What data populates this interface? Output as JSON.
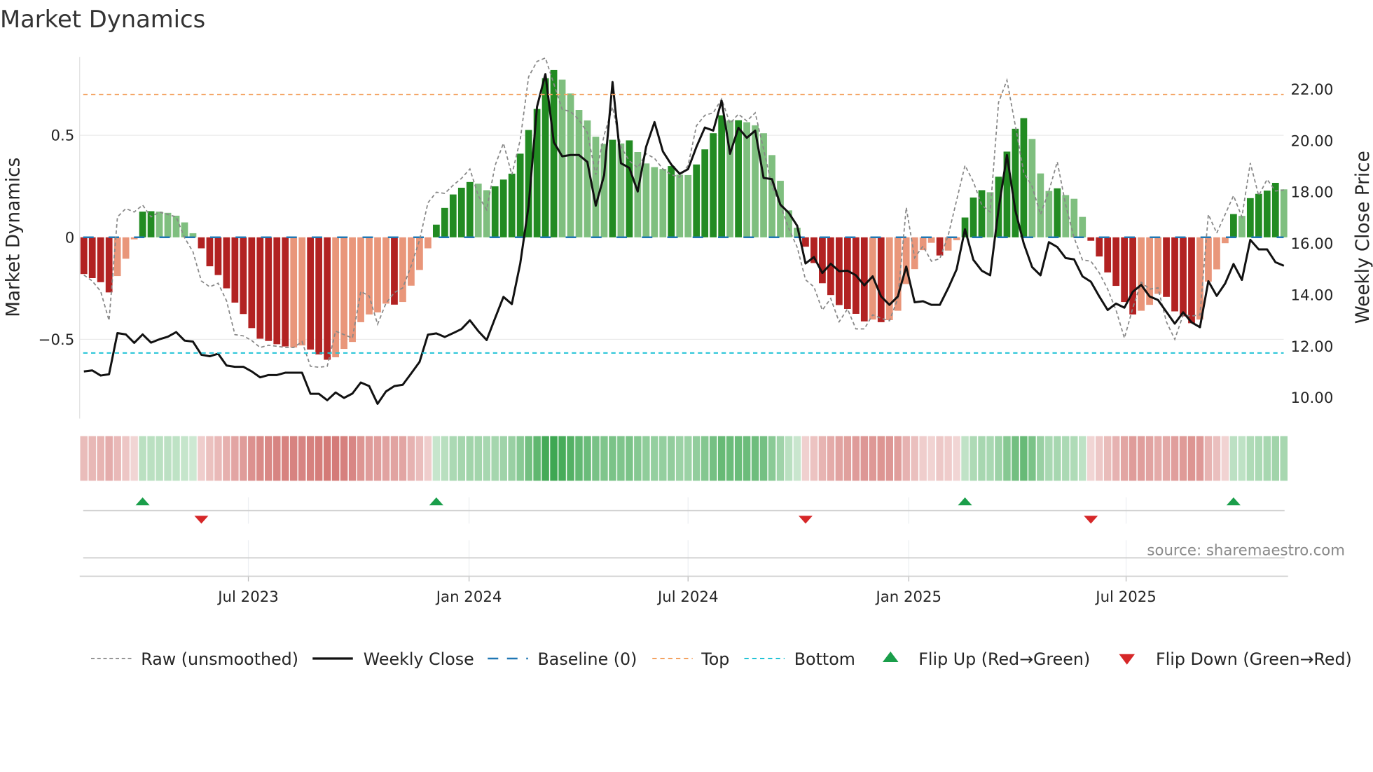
{
  "chart_data": {
    "type": "bar",
    "title": "Market Dynamics",
    "ylabel": "Market Dynamics",
    "y2label": "Weekly Close Price",
    "ylim": [
      -0.9,
      0.9
    ],
    "y2lim": [
      9.0,
      23.3
    ],
    "yticks": [
      {
        "v": 0.5,
        "label": "0.5"
      },
      {
        "v": 0,
        "label": "0"
      },
      {
        "v": -0.5,
        "label": "−0.5"
      }
    ],
    "y2ticks": [
      {
        "v": 22,
        "label": "22.00"
      },
      {
        "v": 20,
        "label": "20.00"
      },
      {
        "v": 18,
        "label": "18.00"
      },
      {
        "v": 16,
        "label": "16.00"
      },
      {
        "v": 14,
        "label": "14.00"
      },
      {
        "v": 12,
        "label": "12.00"
      },
      {
        "v": 10,
        "label": "10.00"
      }
    ],
    "xticks": [
      {
        "week": 19.6,
        "label": "Jul 2023"
      },
      {
        "week": 45.9,
        "label": "Jan 2024"
      },
      {
        "week": 72.0,
        "label": "Jul 2024"
      },
      {
        "week": 98.3,
        "label": "Jan 2025"
      },
      {
        "week": 124.2,
        "label": "Jul 2025"
      }
    ],
    "top_level": 0.7,
    "bottom_level": -0.567,
    "baseline": 0,
    "grid": true,
    "legend_placement": "bottom",
    "source": "source: sharemaestro.com",
    "legend": [
      {
        "key": "raw",
        "label": "Raw (unsmoothed)"
      },
      {
        "key": "close",
        "label": "Weekly Close"
      },
      {
        "key": "baseline",
        "label": "Baseline (0)"
      },
      {
        "key": "top",
        "label": "Top"
      },
      {
        "key": "bottom",
        "label": "Bottom"
      },
      {
        "key": "flipup",
        "label": "Flip Up (Red→Green)"
      },
      {
        "key": "flipdown",
        "label": "Flip Down (Green→Red)"
      }
    ],
    "colors": {
      "dark_green": "#228b22",
      "light_green": "#7fbf7f",
      "dark_red": "#b22222",
      "light_red": "#e9967a",
      "close": "#111111",
      "raw": "#888888",
      "baseline": "#1f77b4",
      "top": "#f4a261",
      "bottom": "#22c3d6",
      "flip_up": "#1a9e4a",
      "flip_down": "#d62728"
    },
    "values": [
      -0.18,
      -0.2,
      -0.22,
      -0.27,
      -0.19,
      -0.105,
      -0.01,
      0.126,
      0.128,
      0.126,
      0.12,
      0.106,
      0.073,
      0.02,
      -0.054,
      -0.142,
      -0.185,
      -0.25,
      -0.32,
      -0.376,
      -0.445,
      -0.497,
      -0.508,
      -0.524,
      -0.535,
      -0.54,
      -0.53,
      -0.55,
      -0.574,
      -0.6,
      -0.588,
      -0.547,
      -0.513,
      -0.416,
      -0.378,
      -0.368,
      -0.325,
      -0.33,
      -0.317,
      -0.237,
      -0.16,
      -0.054,
      0.062,
      0.144,
      0.21,
      0.243,
      0.271,
      0.263,
      0.231,
      0.25,
      0.283,
      0.312,
      0.41,
      0.526,
      0.629,
      0.78,
      0.82,
      0.773,
      0.705,
      0.624,
      0.573,
      0.493,
      0.458,
      0.478,
      0.46,
      0.475,
      0.418,
      0.362,
      0.344,
      0.335,
      0.349,
      0.307,
      0.305,
      0.357,
      0.431,
      0.51,
      0.598,
      0.573,
      0.574,
      0.564,
      0.549,
      0.51,
      0.403,
      0.277,
      0.132,
      0.047,
      -0.046,
      -0.126,
      -0.225,
      -0.283,
      -0.332,
      -0.351,
      -0.375,
      -0.412,
      -0.403,
      -0.416,
      -0.406,
      -0.36,
      -0.229,
      -0.156,
      -0.063,
      -0.027,
      -0.089,
      -0.065,
      -0.014,
      0.097,
      0.195,
      0.231,
      0.221,
      0.297,
      0.42,
      0.532,
      0.584,
      0.482,
      0.313,
      0.227,
      0.24,
      0.207,
      0.189,
      0.1,
      -0.017,
      -0.094,
      -0.172,
      -0.238,
      -0.317,
      -0.378,
      -0.36,
      -0.331,
      -0.277,
      -0.292,
      -0.363,
      -0.387,
      -0.421,
      -0.403,
      -0.217,
      -0.157,
      -0.029,
      0.114,
      0.105,
      0.192,
      0.213,
      0.229,
      0.267,
      0.235
    ],
    "shade": "DDDDLLLDDLLLLLDDDDDDDDDDDLLDDDLLLLLLLDLLLLDDDDDLLDDDDDDDDLLLLLLDLDLLLLDLLDDDDLDLLLLLLLDDDDDDDDLDLLLLLLDLLDDDLDDDDLLLDLLLDDDDDDLLLDDDDLLLLDLDDDDL",
    "raw": [
      -0.185,
      -0.214,
      -0.265,
      -0.408,
      0.1,
      0.141,
      0.124,
      0.158,
      0.1,
      0.124,
      0.112,
      0.1,
      -0.002,
      -0.071,
      -0.214,
      -0.243,
      -0.225,
      -0.311,
      -0.477,
      -0.483,
      -0.506,
      -0.54,
      -0.529,
      -0.534,
      -0.54,
      -0.54,
      -0.511,
      -0.632,
      -0.637,
      -0.632,
      -0.46,
      -0.477,
      -0.494,
      -0.265,
      -0.288,
      -0.426,
      -0.323,
      -0.271,
      -0.248,
      -0.14,
      -0.014,
      0.169,
      0.221,
      0.215,
      0.255,
      0.289,
      0.335,
      0.204,
      0.135,
      0.352,
      0.461,
      0.307,
      0.478,
      0.787,
      0.862,
      0.879,
      0.753,
      0.627,
      0.616,
      0.576,
      0.513,
      0.307,
      0.501,
      0.638,
      0.444,
      0.375,
      0.341,
      0.41,
      0.387,
      0.335,
      0.307,
      0.295,
      0.352,
      0.547,
      0.598,
      0.61,
      0.678,
      0.558,
      0.604,
      0.57,
      0.61,
      0.432,
      0.249,
      0.158,
      0.043,
      -0.048,
      -0.208,
      -0.243,
      -0.357,
      -0.3,
      -0.414,
      -0.351,
      -0.449,
      -0.449,
      -0.38,
      -0.397,
      -0.409,
      -0.3,
      0.146,
      -0.1,
      -0.043,
      -0.117,
      -0.105,
      0.009,
      0.181,
      0.352,
      0.272,
      0.158,
      0.124,
      0.661,
      0.77,
      0.547,
      0.318,
      0.249,
      0.112,
      0.227,
      0.37,
      0.158,
      -0.002,
      -0.111,
      -0.117,
      -0.174,
      -0.254,
      -0.357,
      -0.494,
      -0.346,
      -0.22,
      -0.254,
      -0.248,
      -0.414,
      -0.5,
      -0.38,
      -0.386,
      -0.38,
      0.112,
      0.021,
      0.112,
      0.204,
      0.1,
      0.364,
      0.204,
      0.284,
      0.227,
      0.232
    ],
    "close": [
      11.02,
      11.06,
      10.86,
      10.91,
      12.51,
      12.46,
      12.13,
      12.46,
      12.14,
      12.27,
      12.37,
      12.55,
      12.22,
      12.18,
      11.67,
      11.61,
      11.71,
      11.25,
      11.2,
      11.2,
      11.02,
      10.79,
      10.88,
      10.88,
      10.97,
      10.97,
      10.97,
      10.15,
      10.15,
      9.9,
      10.2,
      9.99,
      10.16,
      10.59,
      10.45,
      9.76,
      10.24,
      10.45,
      10.5,
      10.94,
      11.39,
      12.45,
      12.5,
      12.36,
      12.51,
      12.67,
      13.01,
      12.59,
      12.24,
      13.09,
      13.92,
      13.64,
      15.22,
      17.47,
      21.32,
      22.59,
      19.94,
      19.39,
      19.44,
      19.44,
      19.17,
      17.47,
      18.66,
      22.28,
      19.12,
      18.94,
      18.02,
      19.76,
      20.72,
      19.58,
      19.07,
      18.71,
      18.89,
      19.76,
      20.51,
      20.39,
      21.55,
      19.49,
      20.5,
      20.11,
      20.39,
      18.55,
      18.5,
      17.51,
      17.19,
      16.69,
      15.22,
      15.47,
      14.85,
      15.21,
      14.92,
      14.94,
      14.76,
      14.37,
      14.72,
      13.94,
      13.61,
      13.94,
      15.1,
      13.71,
      13.75,
      13.61,
      13.61,
      14.26,
      14.99,
      16.55,
      15.36,
      14.94,
      14.76,
      17.33,
      19.44,
      17.28,
      16.0,
      15.08,
      14.76,
      16.05,
      15.86,
      15.43,
      15.38,
      14.72,
      14.51,
      13.94,
      13.41,
      13.66,
      13.5,
      14.12,
      14.39,
      13.94,
      13.8,
      13.34,
      12.88,
      13.32,
      12.93,
      12.74,
      14.53,
      13.96,
      14.44,
      15.2,
      14.58,
      16.14,
      15.77,
      15.77,
      15.27,
      15.13
    ]
  }
}
